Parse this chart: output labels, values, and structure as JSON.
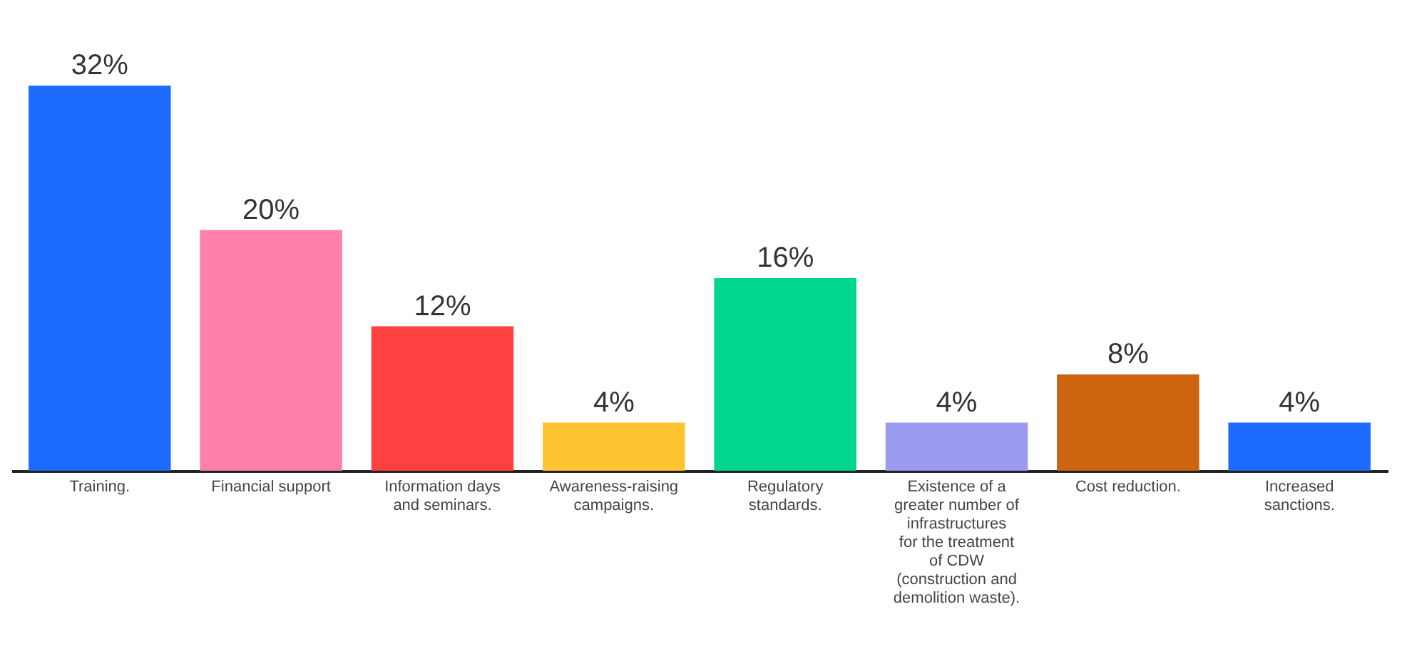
{
  "chart_data": {
    "type": "bar",
    "categories": [
      "Training.",
      "Financial support",
      "Information days and seminars.",
      "Awareness-raising campaigns.",
      "Regulatory standards.",
      "Existence of a greater number of infrastructures for the treatment of CDW (construction and demolition waste).",
      "Cost reduction.",
      "Increased sanctions."
    ],
    "values": [
      32,
      20,
      12,
      4,
      16,
      4,
      8,
      4
    ],
    "colors": [
      "#1e6bff",
      "#ff80a8",
      "#ff4040",
      "#ffc432",
      "#00d68f",
      "#9b9bf0",
      "#cc6410",
      "#1e6bff"
    ],
    "value_labels": [
      "32%",
      "20%",
      "12%",
      "4%",
      "16%",
      "4%",
      "8%",
      "4%"
    ]
  }
}
